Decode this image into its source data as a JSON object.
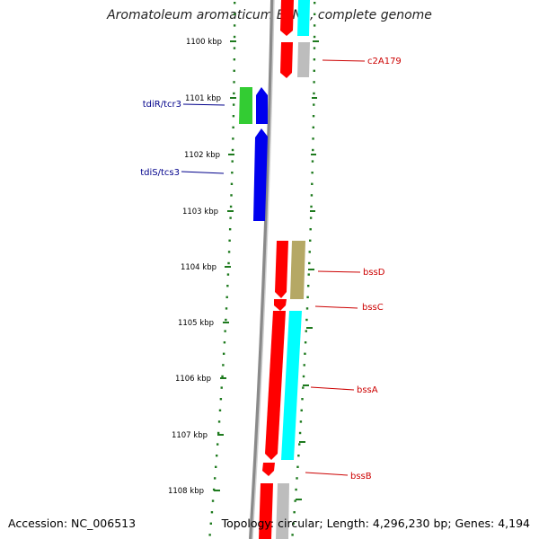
{
  "title": "Aromatoleum aromaticum EbN1, complete genome",
  "footer": {
    "accession": "Accession: NC_006513",
    "summary": "Topology: circular; Length: 4,296,230 bp; Genes: 4,194"
  },
  "ruler": {
    "ticks": [
      "1100 kbp",
      "1101 kbp",
      "1102 kbp",
      "1103 kbp",
      "1104 kbp",
      "1105 kbp",
      "1106 kbp",
      "1107 kbp",
      "1108 kbp"
    ]
  },
  "colors": {
    "backbone": "#8a8a8a",
    "ruler": "#1e7a1e",
    "forward_label": "#cc0000",
    "reverse_label": "#00008b",
    "red": "#ff0000",
    "cyan": "#00ffff",
    "gray": "#bdbdbd",
    "olive": "#b5a865",
    "green": "#33cc33",
    "blue": "#0000ee"
  },
  "features": [
    {
      "name": "c2A179",
      "strand": "forward"
    },
    {
      "name": "bssD",
      "strand": "forward"
    },
    {
      "name": "bssC",
      "strand": "forward"
    },
    {
      "name": "bssA",
      "strand": "forward"
    },
    {
      "name": "bssB",
      "strand": "forward"
    },
    {
      "name": "tdiR/tcr3",
      "strand": "reverse"
    },
    {
      "name": "tdiS/tcs3",
      "strand": "reverse"
    }
  ]
}
